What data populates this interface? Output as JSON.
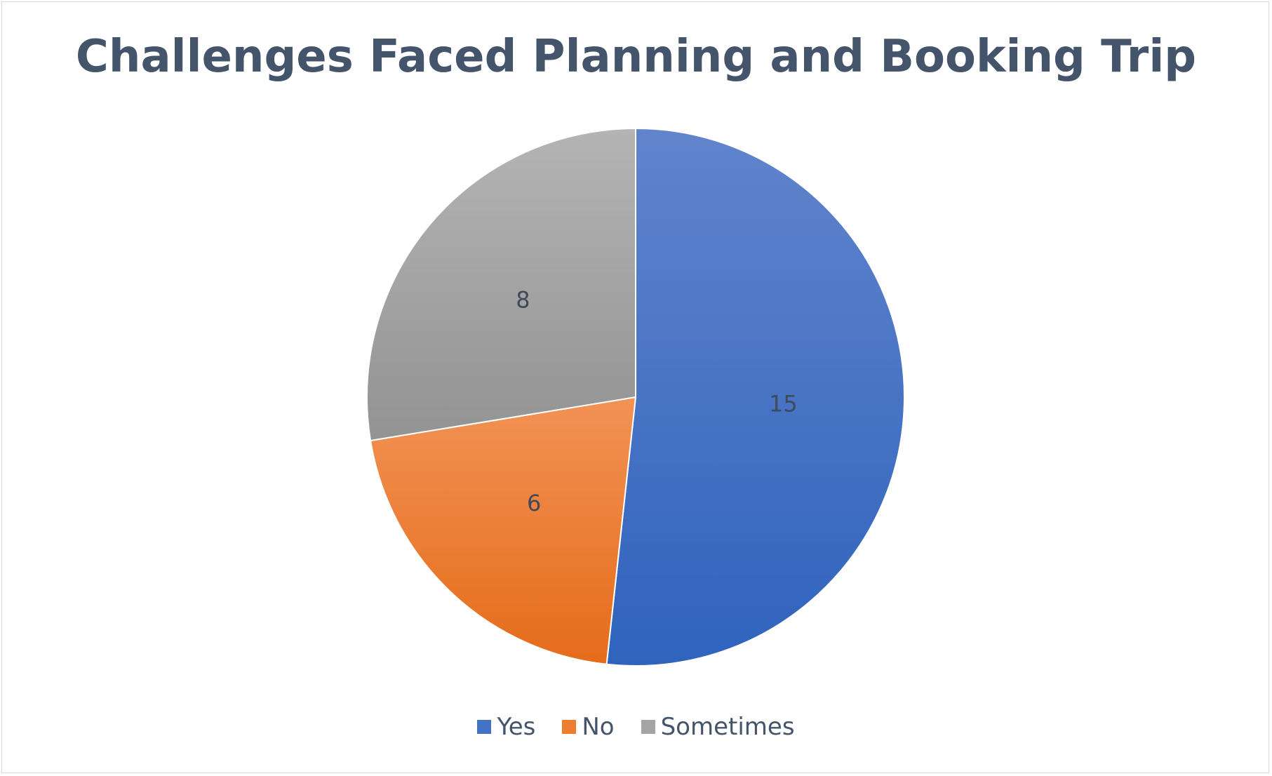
{
  "chart_data": {
    "type": "pie",
    "title": "Challenges Faced Planning and Booking Trip",
    "categories": [
      "Yes",
      "No",
      "Sometimes"
    ],
    "values": [
      15,
      6,
      8
    ],
    "data_labels": [
      "15",
      "6",
      "8"
    ],
    "colors": [
      "#4472c4",
      "#ed7d31",
      "#a5a5a5"
    ],
    "legend_position": "bottom",
    "start_angle": "12 o'clock",
    "direction": "clockwise"
  }
}
